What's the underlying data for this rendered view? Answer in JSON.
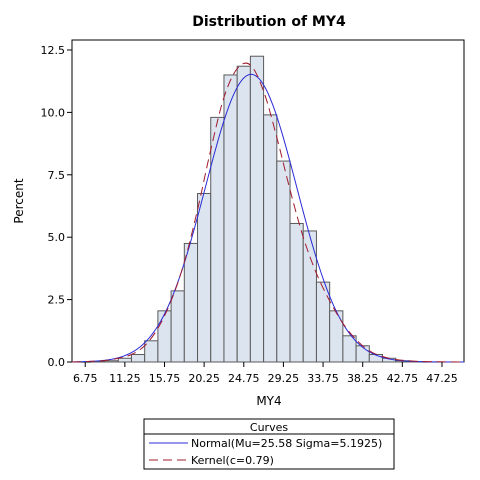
{
  "chart_data": {
    "type": "bar",
    "title": "Distribution of MY4",
    "xlabel": "MY4",
    "ylabel": "Percent",
    "xlim": [
      5.25,
      49.75
    ],
    "ylim": [
      0,
      12.9
    ],
    "bin_width": 1.5,
    "x_ticks": [
      6.75,
      11.25,
      15.75,
      20.25,
      24.75,
      29.25,
      33.75,
      38.25,
      42.75,
      47.25
    ],
    "x_tick_labels": [
      "6.75",
      "11.25",
      "15.75",
      "20.25",
      "24.75",
      "29.25",
      "33.75",
      "38.25",
      "42.75",
      "47.25"
    ],
    "y_ticks": [
      0,
      2.5,
      5,
      7.5,
      10,
      12.5
    ],
    "y_tick_labels": [
      "0.0",
      "2.5",
      "5.0",
      "7.5",
      "10.0",
      "12.5"
    ],
    "grid": false,
    "bars": {
      "centers": [
        6.75,
        8.25,
        9.75,
        11.25,
        12.75,
        14.25,
        15.75,
        17.25,
        18.75,
        20.25,
        21.75,
        23.25,
        24.75,
        26.25,
        27.75,
        29.25,
        30.75,
        32.25,
        33.75,
        35.25,
        36.75,
        38.25,
        39.75,
        41.25,
        42.75,
        44.25,
        45.75,
        47.25
      ],
      "values": [
        0,
        0.02,
        0.05,
        0.15,
        0.3,
        0.85,
        2.05,
        2.85,
        4.75,
        6.75,
        9.8,
        11.5,
        11.85,
        12.25,
        9.9,
        8.05,
        5.55,
        5.25,
        3.2,
        2.05,
        1.05,
        0.65,
        0.3,
        0.15,
        0.05,
        0.02,
        0,
        0
      ]
    },
    "series": [
      {
        "name": "Normal(Mu=25.58 Sigma=5.1925)",
        "kind": "normal",
        "mu": 25.58,
        "sigma": 5.1925,
        "color": "#2b2bd6",
        "dash": "solid"
      },
      {
        "name": "Kernel(c=0.79)",
        "kind": "kernel",
        "color": "#a01c2e",
        "dash": "dashed",
        "x": [
          5.25,
          7.0,
          9.0,
          10.5,
          12.0,
          13.5,
          15.0,
          16.5,
          18.0,
          19.5,
          21.0,
          22.5,
          24.0,
          25.5,
          27.0,
          28.5,
          30.0,
          31.5,
          33.0,
          34.5,
          36.0,
          37.5,
          39.0,
          40.5,
          42.0,
          43.5,
          45.0,
          47.0,
          49.5
        ],
        "y": [
          0.0,
          0.02,
          0.06,
          0.15,
          0.3,
          0.65,
          1.35,
          2.45,
          4.0,
          6.1,
          8.5,
          10.6,
          11.75,
          11.9,
          10.85,
          9.0,
          6.9,
          5.0,
          3.55,
          2.45,
          1.55,
          0.9,
          0.45,
          0.22,
          0.1,
          0.05,
          0.02,
          0.01,
          0.0
        ]
      }
    ],
    "legend": {
      "title": "Curves",
      "position": "bottom"
    }
  },
  "colors": {
    "bar_fill": "#dbe4ef",
    "bar_stroke": "#5a5a5a",
    "normal_curve": "#2b2bd6",
    "kernel_curve": "#a01c2e",
    "axis": "#000000"
  }
}
